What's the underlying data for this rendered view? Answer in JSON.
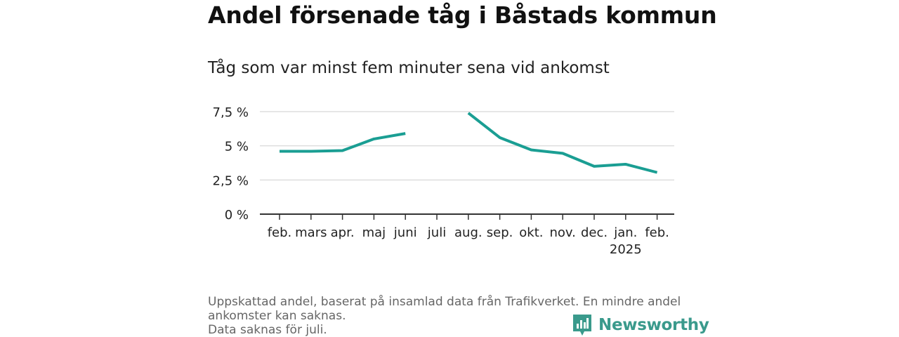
{
  "title": "Andel försenade tåg i Båstads kommun",
  "subtitle": "Tåg som var minst fem minuter sena vid ankomst",
  "footer": {
    "line1": "Uppskattad andel, baserat på insamlad data från Trafikverket. En mindre andel",
    "line2": "ankomster kan saknas.",
    "line3": "Data saknas för juli."
  },
  "brand": {
    "name": "Newsworthy",
    "color": "#3a9a8c"
  },
  "chart_data": {
    "type": "line",
    "categories": [
      "feb.",
      "mars",
      "apr.",
      "maj",
      "juni",
      "juli",
      "aug.",
      "sep.",
      "okt.",
      "nov.",
      "dec.",
      "jan.",
      "feb."
    ],
    "category_sublabels": [
      "",
      "",
      "",
      "",
      "",
      "",
      "",
      "",
      "",
      "",
      "",
      "2025",
      ""
    ],
    "series": [
      {
        "values": [
          4.6,
          4.6,
          4.65,
          5.5,
          5.9,
          null,
          7.4,
          5.6,
          4.7,
          4.45,
          3.5,
          3.65,
          3.05
        ],
        "color": "#1a9e93"
      }
    ],
    "yticks": [
      0,
      2.5,
      5,
      7.5
    ],
    "ytick_labels": [
      "0 %",
      "2,5 %",
      "5 %",
      "7,5 %"
    ],
    "ylim": [
      0,
      7.5
    ],
    "grid": true,
    "grid_color": "#dddddd",
    "axis_color": "#333333"
  }
}
